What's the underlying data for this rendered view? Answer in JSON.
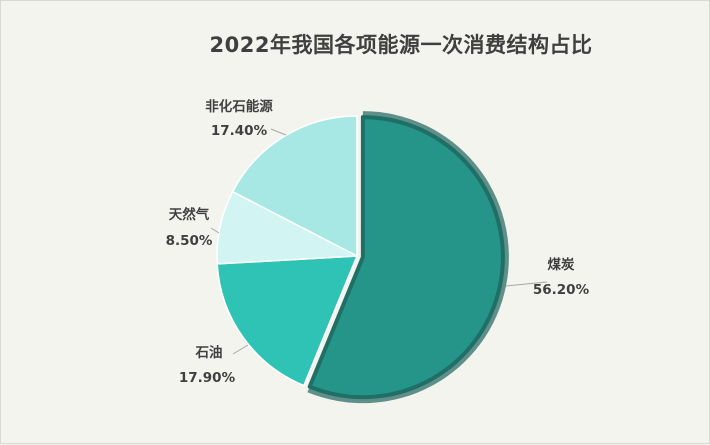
{
  "chart_data": {
    "type": "pie",
    "title": "2022年我国各项能源一次消费结构占比",
    "slices": [
      {
        "name": "煤炭",
        "value": 56.2,
        "label": "56.20%",
        "color": "#259589"
      },
      {
        "name": "石油",
        "value": 17.9,
        "label": "17.90%",
        "color": "#2fc3b5"
      },
      {
        "name": "天然气",
        "value": 8.5,
        "label": "8.50%",
        "color": "#d2f4f3"
      },
      {
        "name": "非化石能源",
        "value": 17.4,
        "label": "17.40%",
        "color": "#a8e8e4"
      }
    ],
    "highlighted_slice": "煤炭",
    "legend": "none"
  }
}
